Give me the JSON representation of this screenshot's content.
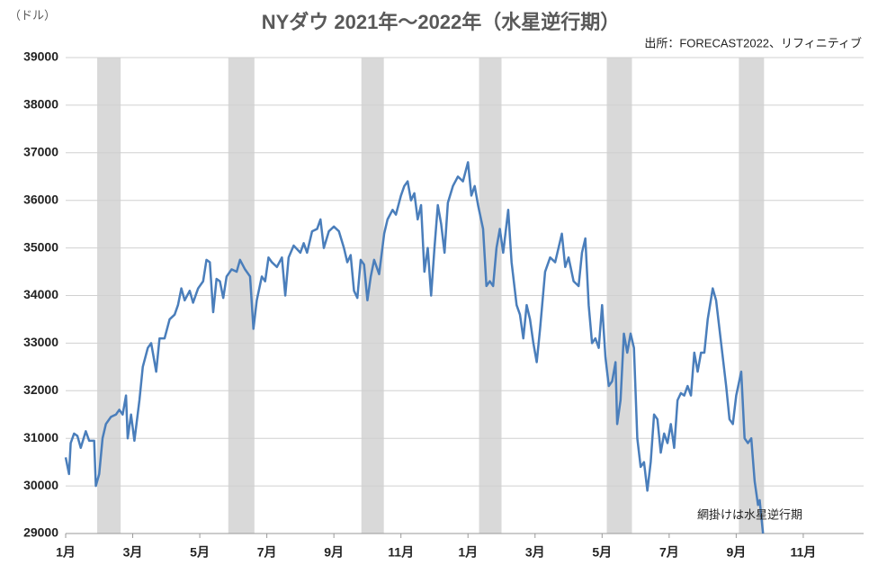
{
  "chart_data": {
    "type": "line",
    "title": "NYダウ  2021年～2022年（水星逆行期）",
    "y_unit": "（ドル）",
    "source": "出所：FORECAST2022、リフィニティブ",
    "annotation": "網掛けは水星逆行期",
    "xlim": [
      0,
      23.8
    ],
    "xticks": [
      {
        "value": 0,
        "label": "1月"
      },
      {
        "value": 2,
        "label": "3月"
      },
      {
        "value": 4,
        "label": "5月"
      },
      {
        "value": 6,
        "label": "7月"
      },
      {
        "value": 8,
        "label": "9月"
      },
      {
        "value": 10,
        "label": "11月"
      },
      {
        "value": 12,
        "label": "1月"
      },
      {
        "value": 14,
        "label": "3月"
      },
      {
        "value": 16,
        "label": "5月"
      },
      {
        "value": 18,
        "label": "7月"
      },
      {
        "value": 20,
        "label": "9月"
      },
      {
        "value": 22,
        "label": "11月"
      }
    ],
    "ylim": [
      29000,
      39000
    ],
    "yticks": [
      29000,
      30000,
      31000,
      32000,
      33000,
      34000,
      35000,
      36000,
      37000,
      38000,
      39000
    ],
    "grid": true,
    "shaded_periods": [
      [
        0.94,
        1.64
      ],
      [
        4.85,
        5.63
      ],
      [
        8.82,
        9.49
      ],
      [
        12.33,
        13.0
      ],
      [
        16.14,
        16.89
      ],
      [
        20.08,
        20.83
      ]
    ],
    "shade_color": "#d9d9d9",
    "series": [
      {
        "name": "NYダウ",
        "color": "#4a7ebb",
        "x": [
          0,
          0.1,
          0.15,
          0.25,
          0.35,
          0.45,
          0.6,
          0.7,
          0.85,
          0.9,
          1.0,
          1.1,
          1.2,
          1.35,
          1.5,
          1.6,
          1.7,
          1.8,
          1.85,
          1.95,
          2.05,
          2.2,
          2.3,
          2.45,
          2.55,
          2.7,
          2.8,
          2.95,
          3.1,
          3.25,
          3.35,
          3.45,
          3.55,
          3.7,
          3.8,
          3.95,
          4.1,
          4.2,
          4.3,
          4.4,
          4.5,
          4.6,
          4.7,
          4.8,
          4.95,
          5.1,
          5.2,
          5.35,
          5.5,
          5.6,
          5.7,
          5.85,
          5.95,
          6.05,
          6.15,
          6.3,
          6.45,
          6.55,
          6.65,
          6.8,
          7.0,
          7.1,
          7.2,
          7.35,
          7.5,
          7.6,
          7.7,
          7.85,
          8.0,
          8.15,
          8.3,
          8.4,
          8.5,
          8.6,
          8.7,
          8.8,
          8.9,
          9.0,
          9.1,
          9.2,
          9.35,
          9.5,
          9.6,
          9.75,
          9.85,
          10.0,
          10.1,
          10.2,
          10.3,
          10.4,
          10.5,
          10.6,
          10.7,
          10.8,
          10.9,
          11.0,
          11.1,
          11.2,
          11.3,
          11.4,
          11.55,
          11.7,
          11.85,
          12.0,
          12.1,
          12.2,
          12.3,
          12.45,
          12.55,
          12.65,
          12.75,
          12.85,
          12.95,
          13.05,
          13.2,
          13.3,
          13.45,
          13.55,
          13.65,
          13.75,
          13.85,
          13.95,
          14.05,
          14.15,
          14.3,
          14.45,
          14.6,
          14.8,
          14.9,
          15.0,
          15.15,
          15.3,
          15.4,
          15.5,
          15.6,
          15.7,
          15.8,
          15.9,
          16.0,
          16.1,
          16.2,
          16.3,
          16.4,
          16.45,
          16.55,
          16.65,
          16.75,
          16.85,
          16.95,
          17.05,
          17.15,
          17.25,
          17.35,
          17.45,
          17.55,
          17.65,
          17.75,
          17.85,
          17.95,
          18.05,
          18.15,
          18.25,
          18.35,
          18.45,
          18.55,
          18.65,
          18.75,
          18.85,
          18.95,
          19.05,
          19.15,
          19.3,
          19.4,
          19.5,
          19.6,
          19.7,
          19.8,
          19.9,
          20.0,
          20.15,
          20.25,
          20.35,
          20.45,
          20.55,
          20.65,
          20.7,
          20.8
        ],
        "values": [
          30600,
          30250,
          30900,
          31100,
          31050,
          30800,
          31150,
          30950,
          30950,
          30000,
          30250,
          31000,
          31300,
          31450,
          31500,
          31600,
          31500,
          31900,
          31000,
          31500,
          30950,
          31800,
          32500,
          32900,
          33000,
          32400,
          33100,
          33100,
          33500,
          33600,
          33800,
          34150,
          33900,
          34100,
          33850,
          34150,
          34300,
          34750,
          34700,
          33650,
          34350,
          34300,
          33950,
          34400,
          34550,
          34500,
          34750,
          34550,
          34400,
          33300,
          33900,
          34400,
          34300,
          34800,
          34700,
          34600,
          34800,
          34000,
          34800,
          35050,
          34900,
          35100,
          34900,
          35350,
          35400,
          35600,
          35000,
          35350,
          35450,
          35350,
          35000,
          34700,
          34850,
          34100,
          33950,
          34750,
          34650,
          33900,
          34400,
          34750,
          34450,
          35300,
          35600,
          35800,
          35700,
          36100,
          36300,
          36400,
          36000,
          36150,
          35600,
          35900,
          34500,
          35000,
          34000,
          35000,
          35900,
          35500,
          34900,
          35950,
          36300,
          36500,
          36400,
          36800,
          36100,
          36300,
          35900,
          35400,
          34200,
          34300,
          34200,
          35000,
          35400,
          34900,
          35800,
          34700,
          33800,
          33600,
          33100,
          33800,
          33500,
          33000,
          32600,
          33300,
          34500,
          34800,
          34700,
          35300,
          34600,
          34800,
          34300,
          34200,
          34900,
          35200,
          33800,
          33000,
          33100,
          32900,
          33800,
          32700,
          32100,
          32200,
          32600,
          31300,
          31800,
          33200,
          32800,
          33200,
          32900,
          31000,
          30400,
          30500,
          29900,
          30500,
          31500,
          31400,
          30700,
          31100,
          30900,
          31300,
          30800,
          31800,
          31950,
          31900,
          32100,
          31900,
          32800,
          32400,
          32800,
          32800,
          33500,
          34150,
          33900,
          33300,
          32700,
          32100,
          31400,
          31300,
          31900,
          32400,
          31000,
          30900,
          31000,
          30100,
          29600,
          29700,
          29000
        ]
      }
    ]
  }
}
